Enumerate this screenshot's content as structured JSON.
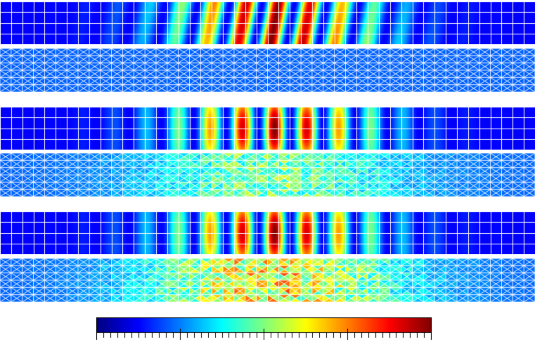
{
  "figure": {
    "description_free": true,
    "colormap": [
      "#00007f",
      "#0000ff",
      "#007fff",
      "#00ffff",
      "#7fff7f",
      "#ffff00",
      "#ff7f00",
      "#ff0000",
      "#7f0000"
    ],
    "grid_line_color": "#ffffff",
    "mesh_columns": 48,
    "coarse_rows": 4,
    "fine_rows": 6,
    "colorbar": {
      "major_ticks": 5,
      "minor_per_major": 12
    },
    "panels": [
      {
        "name": "panel-1-coarse-field",
        "kind": "coarse",
        "mode": "skewed"
      },
      {
        "name": "panel-1-triangular-mesh",
        "kind": "fine",
        "intensity": 0.0
      },
      {
        "name": "panel-2-coarse-field",
        "kind": "coarse",
        "mode": "band"
      },
      {
        "name": "panel-2-triangular-mesh",
        "kind": "fine",
        "intensity": 0.55
      },
      {
        "name": "panel-3-coarse-field",
        "kind": "coarse",
        "mode": "band"
      },
      {
        "name": "panel-3-triangular-mesh",
        "kind": "fine",
        "intensity": 0.85
      }
    ]
  }
}
